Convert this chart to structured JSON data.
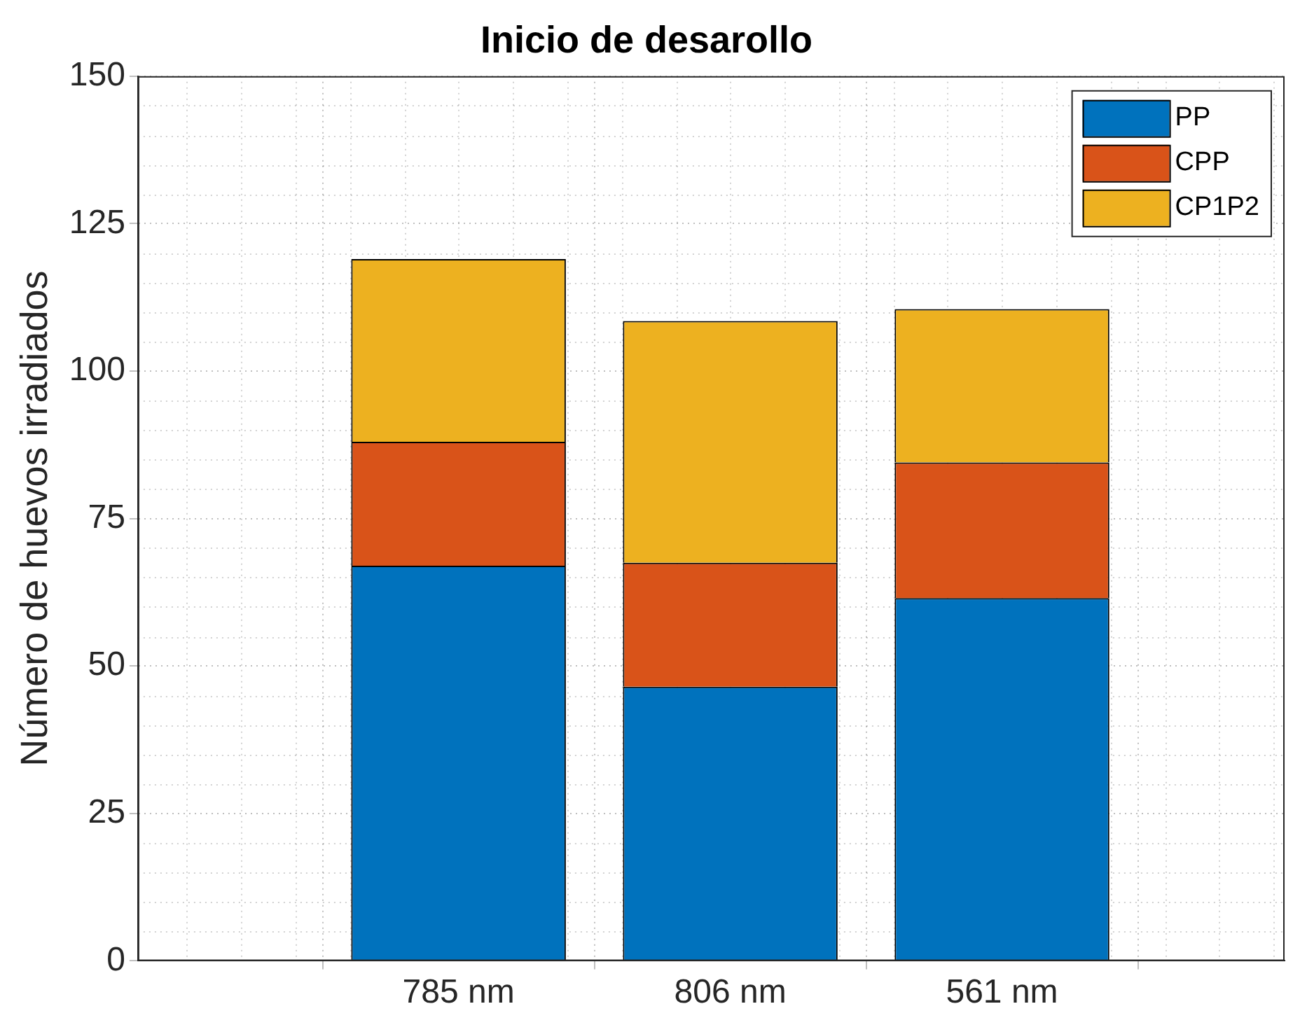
{
  "chart_data": {
    "type": "bar",
    "title": "Inicio de desarollo",
    "ylabel": "Número de huevos irradiados",
    "categories": [
      "785 nm",
      "806 nm",
      "561 nm"
    ],
    "stacked": true,
    "series": [
      {
        "name": "PP",
        "color": "#0072bd",
        "values": [
          67,
          46.5,
          61.5
        ]
      },
      {
        "name": "CPP",
        "color": "#d95319",
        "values": [
          21,
          21,
          23
        ]
      },
      {
        "name": "CP1P2",
        "color": "#edb120",
        "values": [
          31,
          41,
          26
        ]
      }
    ],
    "ylim": [
      0,
      150
    ],
    "yticks": [
      0,
      25,
      50,
      75,
      100,
      125,
      150
    ],
    "grid": true,
    "legend": "top right"
  }
}
